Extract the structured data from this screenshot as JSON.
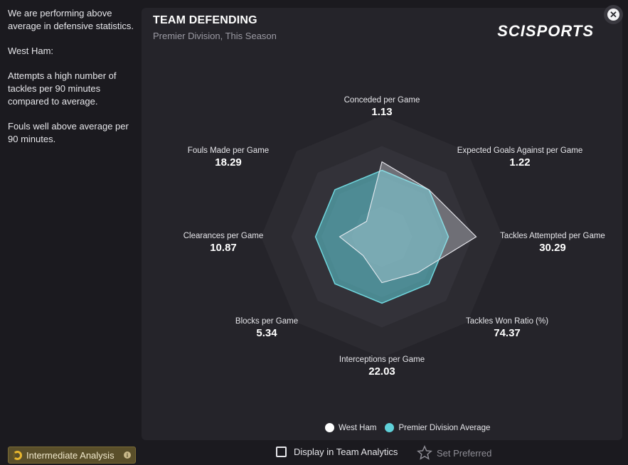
{
  "sidebar": {
    "paragraphs": [
      "We are performing above\naverage in defensive statistics.",
      "West Ham:",
      "Attempts a high number of\ntackles per 90 minutes\ncompared to average.",
      "Fouls well above average per\n90 minutes."
    ]
  },
  "card": {
    "title": "TEAM DEFENDING",
    "subtitle": "Premier Division, This Season",
    "brand": "SCISPORTS"
  },
  "close_icon": "close-icon",
  "colors": {
    "team": "#ffffff",
    "average": "#5fd0d8",
    "web_bg": "#2c2b31"
  },
  "chart_data": {
    "type": "radar",
    "axes": [
      {
        "name": "Conceded per Game",
        "value": "1.13"
      },
      {
        "name": "Expected Goals Against per Game",
        "value": "1.22"
      },
      {
        "name": "Tackles Attempted per Game",
        "value": "30.29"
      },
      {
        "name": "Tackles Won Ratio (%)",
        "value": "74.37"
      },
      {
        "name": "Interceptions per Game",
        "value": "22.03"
      },
      {
        "name": "Blocks per Game",
        "value": "5.34"
      },
      {
        "name": "Clearances per Game",
        "value": "10.87"
      },
      {
        "name": "Fouls Made per Game",
        "value": "18.29"
      }
    ],
    "series": [
      {
        "name": "West Ham",
        "values": [
          0.62,
          0.55,
          0.78,
          0.42,
          0.38,
          0.22,
          0.35,
          0.18
        ]
      },
      {
        "name": "Premier Division Average",
        "values": [
          0.55,
          0.55,
          0.55,
          0.55,
          0.55,
          0.55,
          0.55,
          0.55
        ]
      }
    ],
    "rings": 4
  },
  "legend": {
    "team_label": "West Ham",
    "average_label": "Premier Division Average"
  },
  "footer": {
    "badge_label": "Intermediate Analysis",
    "checkbox_label": "Display in Team Analytics",
    "preferred_label": "Set Preferred"
  }
}
